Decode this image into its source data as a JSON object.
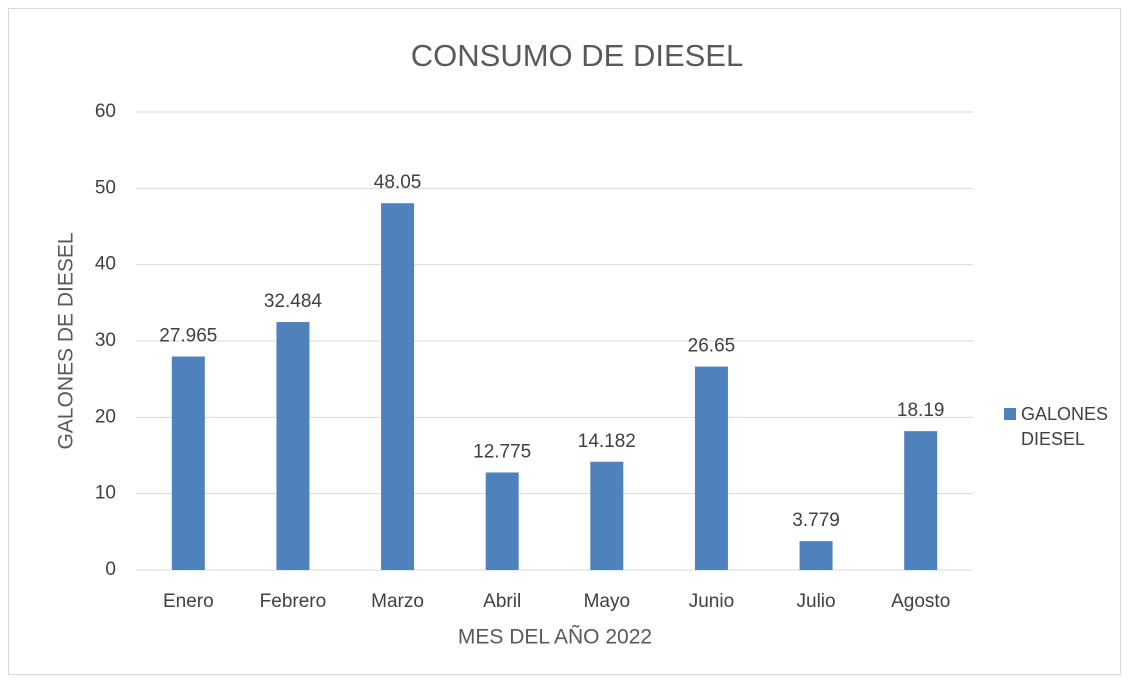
{
  "chart_data": {
    "type": "bar",
    "title": "CONSUMO DE DIESEL",
    "x_label": "MES DEL AÑO 2022",
    "y_label": "GALONES DE DIESEL",
    "categories": [
      "Enero",
      "Febrero",
      "Marzo",
      "Abril",
      "Mayo",
      "Junio",
      "Julio",
      "Agosto"
    ],
    "series": [
      {
        "name": "GALONES DIESEL",
        "color": "#4f81bd",
        "values": [
          27.965,
          32.484,
          48.05,
          12.775,
          14.182,
          26.65,
          3.779,
          18.19
        ]
      }
    ],
    "ylim": [
      0,
      60
    ],
    "yticks": [
      0,
      10,
      20,
      30,
      40,
      50,
      60
    ],
    "grid": true,
    "legend": "right",
    "data_labels": true
  }
}
